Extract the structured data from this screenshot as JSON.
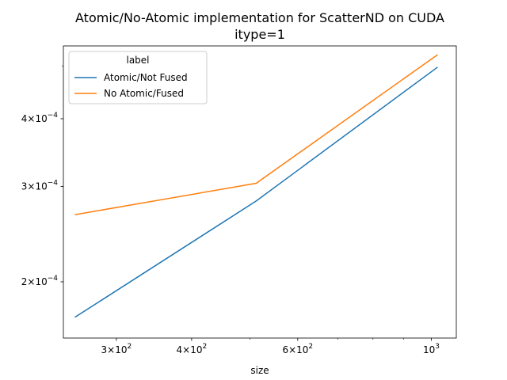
{
  "chart_data": {
    "type": "line",
    "title": "Atomic/No-Atomic implementation for ScatterND on CUDA",
    "subtitle": "itype=1",
    "xlabel": "size",
    "ylabel": "",
    "xscale": "log",
    "yscale": "log",
    "xlim": [
      245,
      1100
    ],
    "ylim": [
      0.0001575,
      0.000545
    ],
    "x_ticks": [
      {
        "value": 300,
        "label_base": "3",
        "label_exp": "2"
      },
      {
        "value": 400,
        "label_base": "4",
        "label_exp": "2"
      },
      {
        "value": 600,
        "label_base": "6",
        "label_exp": "2"
      },
      {
        "value": 1000,
        "label_base": "10",
        "label_exp": "3"
      }
    ],
    "y_ticks": [
      {
        "value": 0.0002,
        "label_base": "2",
        "label_exp": "−4"
      },
      {
        "value": 0.0003,
        "label_base": "3",
        "label_exp": "−4"
      },
      {
        "value": 0.0004,
        "label_base": "4",
        "label_exp": "−4"
      }
    ],
    "grid": false,
    "legend": {
      "title": "label",
      "position": "top-left"
    },
    "x": [
      256,
      512,
      1024
    ],
    "series": [
      {
        "name": "Atomic/Not Fused",
        "color": "#1f77b4",
        "values": [
          0.000172,
          0.000282,
          0.000498
        ]
      },
      {
        "name": "No Atomic/Fused",
        "color": "#ff7f0e",
        "values": [
          0.000266,
          0.000304,
          0.000525
        ]
      }
    ]
  }
}
